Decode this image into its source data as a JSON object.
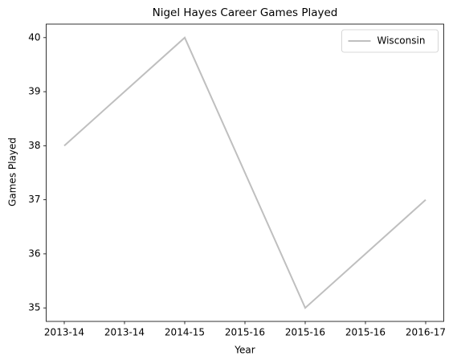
{
  "chart_data": {
    "type": "line",
    "title": "Nigel Hayes Career Games Played",
    "xlabel": "Year",
    "ylabel": "Games Played",
    "x": [
      0,
      1,
      2,
      3
    ],
    "series": [
      {
        "name": "Wisconsin",
        "color": "#bfbfbf",
        "values": [
          38,
          40,
          35,
          37
        ]
      }
    ],
    "xlim": [
      -0.15,
      3.15
    ],
    "xticks": [
      {
        "value": 0,
        "label": "2013-14"
      },
      {
        "value": 0.5,
        "label": "2013-14"
      },
      {
        "value": 1,
        "label": "2014-15"
      },
      {
        "value": 1.5,
        "label": "2015-16"
      },
      {
        "value": 2,
        "label": "2015-16"
      },
      {
        "value": 2.5,
        "label": "2015-16"
      },
      {
        "value": 3,
        "label": "2016-17"
      }
    ],
    "ylim": [
      34.75,
      40.25
    ],
    "yticks": [
      35,
      36,
      37,
      38,
      39,
      40
    ],
    "grid": false,
    "legend": "upper right"
  }
}
